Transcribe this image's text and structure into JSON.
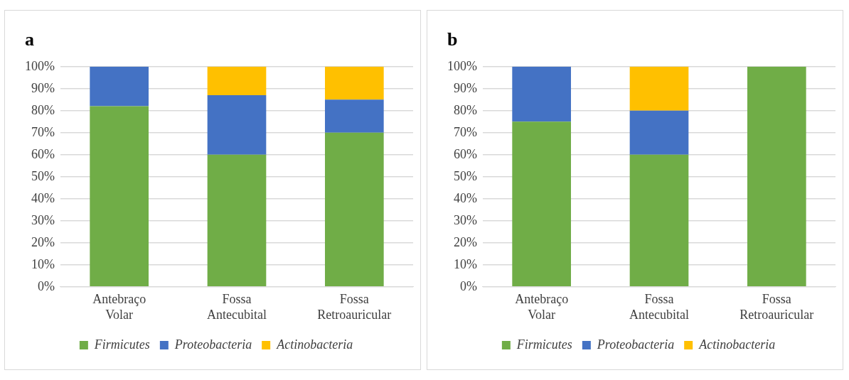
{
  "chart_data": [
    {
      "type": "bar",
      "title": "a",
      "stacked": true,
      "categories": [
        "Antebraço Volar",
        "Fossa Antecubital",
        "Fossa Retroauricular"
      ],
      "series": [
        {
          "name": "Firmicutes",
          "color": "#70ad47",
          "values": [
            82,
            60,
            70
          ]
        },
        {
          "name": "Proteobacteria",
          "color": "#4472c4",
          "values": [
            18,
            27,
            15
          ]
        },
        {
          "name": "Actinobacteria",
          "color": "#ffc000",
          "values": [
            0,
            13,
            15
          ]
        }
      ],
      "ylim": [
        0,
        100
      ],
      "yticks": [
        {
          "value": 0,
          "label": "0%"
        },
        {
          "value": 10,
          "label": "10%"
        },
        {
          "value": 20,
          "label": "20%"
        },
        {
          "value": 30,
          "label": "30%"
        },
        {
          "value": 40,
          "label": "40%"
        },
        {
          "value": 50,
          "label": "50%"
        },
        {
          "value": 60,
          "label": "60%"
        },
        {
          "value": 70,
          "label": "70%"
        },
        {
          "value": 80,
          "label": "80%"
        },
        {
          "value": 90,
          "label": "90%"
        },
        {
          "value": 100,
          "label": "100%"
        }
      ],
      "grid": "y",
      "legend": "bottom"
    },
    {
      "type": "bar",
      "title": "b",
      "stacked": true,
      "categories": [
        "Antebraço Volar",
        "Fossa Antecubital",
        "Fossa Retroauricular"
      ],
      "series": [
        {
          "name": "Firmicutes",
          "color": "#70ad47",
          "values": [
            75,
            60,
            100
          ]
        },
        {
          "name": "Proteobacteria",
          "color": "#4472c4",
          "values": [
            25,
            20,
            0
          ]
        },
        {
          "name": "Actinobacteria",
          "color": "#ffc000",
          "values": [
            0,
            20,
            0
          ]
        }
      ],
      "ylim": [
        0,
        100
      ],
      "yticks": [
        {
          "value": 0,
          "label": "0%"
        },
        {
          "value": 10,
          "label": "10%"
        },
        {
          "value": 20,
          "label": "20%"
        },
        {
          "value": 30,
          "label": "30%"
        },
        {
          "value": 40,
          "label": "40%"
        },
        {
          "value": 50,
          "label": "50%"
        },
        {
          "value": 60,
          "label": "60%"
        },
        {
          "value": 70,
          "label": "70%"
        },
        {
          "value": 80,
          "label": "80%"
        },
        {
          "value": 90,
          "label": "90%"
        },
        {
          "value": 100,
          "label": "100%"
        }
      ],
      "grid": "y",
      "legend": "bottom"
    }
  ]
}
